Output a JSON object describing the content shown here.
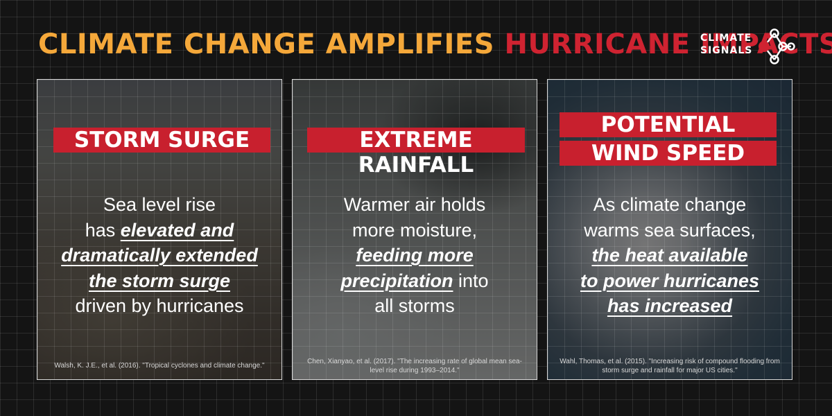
{
  "title": {
    "part1": "CLIMATE CHANGE AMPLIFIES",
    "part2": "HURRICANE IMPACTS"
  },
  "logo": {
    "line1": "CLIMATE",
    "line2": "SIGNALS"
  },
  "colors": {
    "accent_orange": "#f5a83a",
    "accent_red": "#cf2331",
    "banner_red": "#c8202e",
    "background": "#141414"
  },
  "cards": [
    {
      "heading": "STORM SURGE",
      "text": [
        {
          "t": "Sea level rise",
          "e": false
        },
        {
          "t": "has ",
          "e": false
        },
        {
          "t": "elevated and",
          "e": true
        },
        {
          "t": "dramatically extended",
          "e": true
        },
        {
          "t": "the storm surge",
          "e": true
        },
        {
          "t": "driven by hurricanes",
          "e": false
        }
      ],
      "citation": "Walsh, K. J.E., et al. (2016). \"Tropical cyclones and climate change.\""
    },
    {
      "heading": "EXTREME RAINFALL",
      "text": [
        {
          "t": "Warmer air holds",
          "e": false
        },
        {
          "t": "more moisture,",
          "e": false
        },
        {
          "t": "feeding more",
          "e": true
        },
        {
          "t": "precipitation",
          "e": true
        },
        {
          "t": " into",
          "e": false
        },
        {
          "t": "all storms",
          "e": false
        }
      ],
      "citation": "Chen, Xianyao, et al. (2017). \"The increasing rate of global mean sea-level rise during 1993–2014.\""
    },
    {
      "heading_line1": "POTENTIAL",
      "heading_line2": "WIND SPEED",
      "text": [
        {
          "t": "As climate change",
          "e": false
        },
        {
          "t": "warms sea surfaces,",
          "e": false
        },
        {
          "t": "the heat available",
          "e": true
        },
        {
          "t": "to power hurricanes",
          "e": true
        },
        {
          "t": "has increased",
          "e": true
        }
      ],
      "citation": "Wahl, Thomas, et al. (2015). \"Increasing risk of compound flooding from storm surge and rainfall for major US cities.\""
    }
  ]
}
